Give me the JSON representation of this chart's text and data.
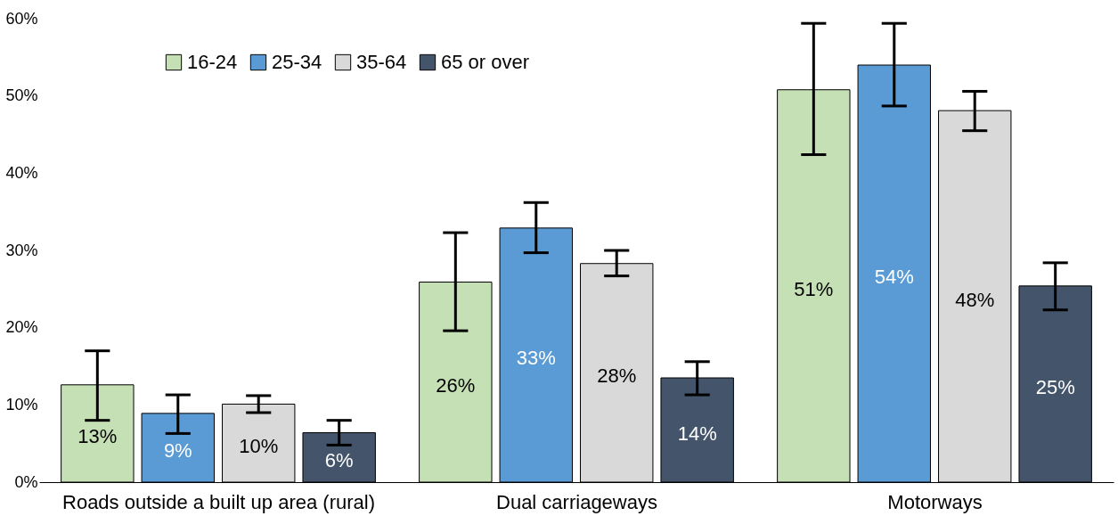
{
  "chart_data": {
    "type": "bar",
    "categories": [
      "Roads outside a built up area (rural)",
      "Dual carriageways",
      "Motorways"
    ],
    "series": [
      {
        "name": "16-24",
        "color": "#c5e0b4",
        "values": [
          12.6,
          25.9,
          50.8
        ],
        "errors": [
          [
            8.0,
            17.0
          ],
          [
            19.6,
            32.3
          ],
          [
            42.4,
            59.4
          ]
        ],
        "value_labels": [
          "13%",
          "26%",
          "51%"
        ]
      },
      {
        "name": "25-34",
        "color": "#5b9bd5",
        "values": [
          8.9,
          32.9,
          54.0
        ],
        "errors": [
          [
            6.3,
            11.3
          ],
          [
            29.7,
            36.2
          ],
          [
            48.7,
            59.4
          ]
        ],
        "value_labels": [
          "9%",
          "33%",
          "54%"
        ]
      },
      {
        "name": "35-64",
        "color": "#d9d9d9",
        "values": [
          10.1,
          28.3,
          48.1
        ],
        "errors": [
          [
            9.0,
            11.2
          ],
          [
            26.7,
            30.0
          ],
          [
            45.5,
            50.6
          ]
        ],
        "value_labels": [
          "10%",
          "28%",
          "48%"
        ]
      },
      {
        "name": "65 or over",
        "color": "#44546a",
        "values": [
          6.4,
          13.5,
          25.4
        ],
        "errors": [
          [
            4.8,
            8.0
          ],
          [
            11.3,
            15.6
          ],
          [
            22.3,
            28.4
          ]
        ],
        "value_labels": [
          "6%",
          "14%",
          "25%"
        ]
      }
    ],
    "ylim": [
      0,
      60
    ],
    "yticks": [
      {
        "value": 0,
        "label": "0%"
      },
      {
        "value": 10,
        "label": "10%"
      },
      {
        "value": 20,
        "label": "20%"
      },
      {
        "value": 30,
        "label": "30%"
      },
      {
        "value": 40,
        "label": "40%"
      },
      {
        "value": 50,
        "label": "50%"
      },
      {
        "value": 60,
        "label": "60%"
      }
    ],
    "legend": "top left",
    "grid": false
  }
}
